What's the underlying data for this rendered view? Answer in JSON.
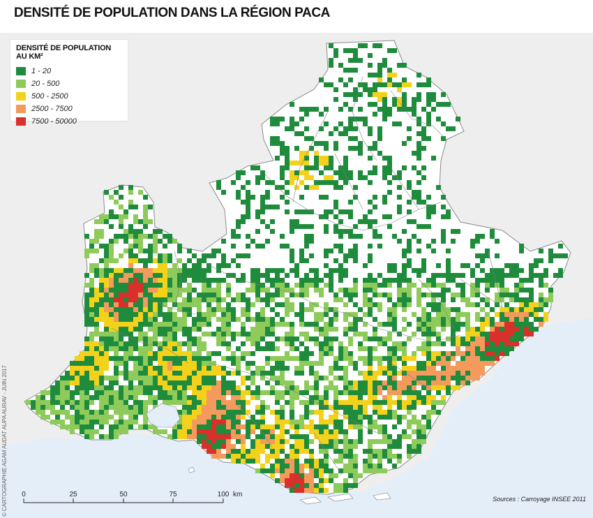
{
  "title": "DENSITÉ DE POPULATION DANS LA RÉGION PACA",
  "legend": {
    "title": "DENSITÉ DE POPULATION AU KM²",
    "items": [
      {
        "label": "1 - 20",
        "color": "#1e8c3c"
      },
      {
        "label": "20 - 500",
        "color": "#8ecb5a"
      },
      {
        "label": "500 - 2500",
        "color": "#f4d21c"
      },
      {
        "label": "2500 - 7500",
        "color": "#f39a5c"
      },
      {
        "label": "7500 - 50000",
        "color": "#d9302b"
      }
    ]
  },
  "scale_bar": {
    "ticks": [
      "0",
      "25",
      "50",
      "75",
      "100"
    ],
    "unit": "km"
  },
  "credit": "© CARTOGRAPHIE AGAM AUDAT AUPA AURAV - JUIN 2017",
  "sources": "Sources : Carroyage INSEE 2011",
  "colors": {
    "sea": "#e3eef9",
    "land_outside": "#eeeeee",
    "region": "#ffffff",
    "boundary": "#7d7d7d"
  }
}
